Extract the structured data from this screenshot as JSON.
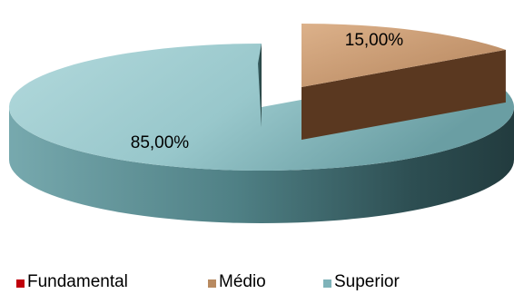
{
  "chart_data": {
    "type": "pie",
    "style": "3d-exploded",
    "categories": [
      "Fundamental",
      "Médio",
      "Superior"
    ],
    "values": [
      0,
      15,
      85
    ],
    "data_labels": [
      "",
      "15,00%",
      "85,00%"
    ],
    "colors": [
      "#c0000b",
      "#c8956a",
      "#8fc3c8"
    ],
    "legend_position": "bottom",
    "title": ""
  },
  "legend": {
    "items": [
      {
        "label": "Fundamental",
        "color": "#c0000b"
      },
      {
        "label": "Médio",
        "color": "#b88a60"
      },
      {
        "label": "Superior",
        "color": "#7fb3b9"
      }
    ]
  }
}
